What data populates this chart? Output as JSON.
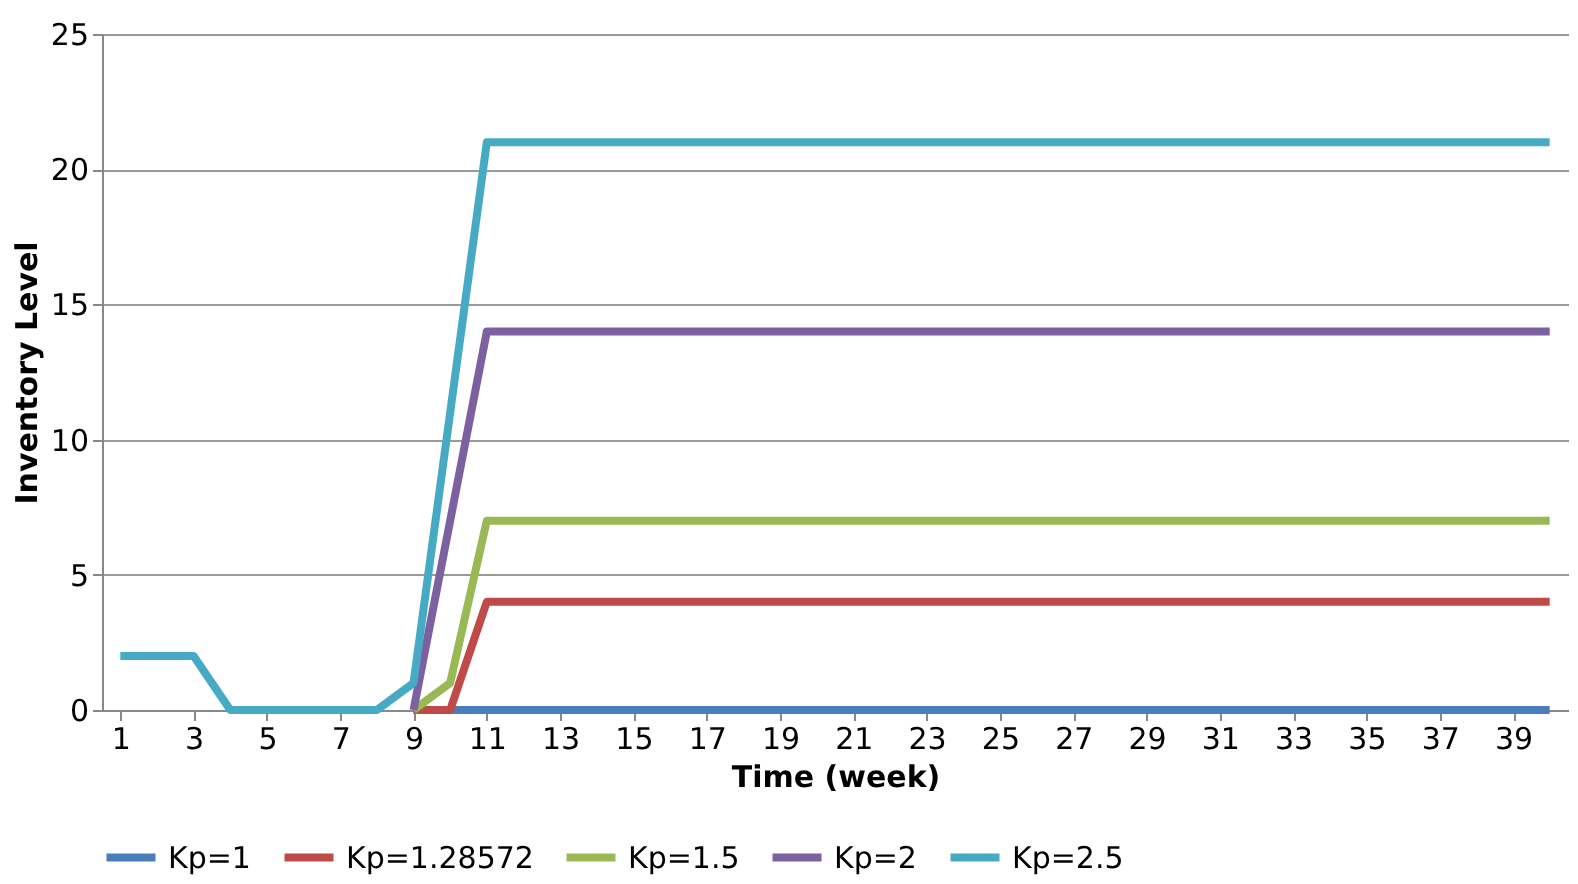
{
  "chart_data": {
    "type": "line",
    "xlabel": "Time (week)",
    "ylabel": "Inventory Level",
    "x": [
      1,
      2,
      3,
      4,
      5,
      6,
      7,
      8,
      9,
      10,
      11,
      12,
      13,
      14,
      15,
      16,
      17,
      18,
      19,
      20,
      21,
      22,
      23,
      24,
      25,
      26,
      27,
      28,
      29,
      30,
      31,
      32,
      33,
      34,
      35,
      36,
      37,
      38,
      39,
      40
    ],
    "xlim": [
      0.5,
      40.5
    ],
    "xticks": [
      1,
      3,
      5,
      7,
      9,
      11,
      13,
      15,
      17,
      19,
      21,
      23,
      25,
      27,
      29,
      31,
      33,
      35,
      37,
      39
    ],
    "ylim": [
      0,
      25
    ],
    "yticks": [
      0,
      5,
      10,
      15,
      20,
      25
    ],
    "grid": "y",
    "legend": "bottom",
    "marker": "none",
    "line_style": "solid",
    "series": [
      {
        "name": "Kp=1",
        "color": "#4a7ebb",
        "values": [
          null,
          null,
          null,
          null,
          null,
          null,
          null,
          null,
          0,
          0,
          0,
          0,
          0,
          0,
          0,
          0,
          0,
          0,
          0,
          0,
          0,
          0,
          0,
          0,
          0,
          0,
          0,
          0,
          0,
          0,
          0,
          0,
          0,
          0,
          0,
          0,
          0,
          0,
          0,
          0
        ]
      },
      {
        "name": "Kp=1.28572",
        "color": "#be4b48",
        "values": [
          null,
          null,
          null,
          null,
          null,
          null,
          null,
          null,
          0,
          0,
          4,
          4,
          4,
          4,
          4,
          4,
          4,
          4,
          4,
          4,
          4,
          4,
          4,
          4,
          4,
          4,
          4,
          4,
          4,
          4,
          4,
          4,
          4,
          4,
          4,
          4,
          4,
          4,
          4,
          4
        ]
      },
      {
        "name": "Kp=1.5",
        "color": "#98b954",
        "values": [
          null,
          null,
          null,
          null,
          null,
          null,
          null,
          null,
          0,
          1,
          7,
          7,
          7,
          7,
          7,
          7,
          7,
          7,
          7,
          7,
          7,
          7,
          7,
          7,
          7,
          7,
          7,
          7,
          7,
          7,
          7,
          7,
          7,
          7,
          7,
          7,
          7,
          7,
          7,
          7
        ]
      },
      {
        "name": "Kp=2",
        "color": "#7d60a0",
        "values": [
          null,
          null,
          null,
          null,
          null,
          null,
          null,
          null,
          0,
          7,
          14,
          14,
          14,
          14,
          14,
          14,
          14,
          14,
          14,
          14,
          14,
          14,
          14,
          14,
          14,
          14,
          14,
          14,
          14,
          14,
          14,
          14,
          14,
          14,
          14,
          14,
          14,
          14,
          14,
          14
        ]
      },
      {
        "name": "Kp=2.5",
        "color": "#46aac5",
        "values": [
          2,
          2,
          2,
          0,
          0,
          0,
          0,
          0,
          1,
          11,
          21,
          21,
          21,
          21,
          21,
          21,
          21,
          21,
          21,
          21,
          21,
          21,
          21,
          21,
          21,
          21,
          21,
          21,
          21,
          21,
          21,
          21,
          21,
          21,
          21,
          21,
          21,
          21,
          21,
          21
        ]
      }
    ]
  }
}
